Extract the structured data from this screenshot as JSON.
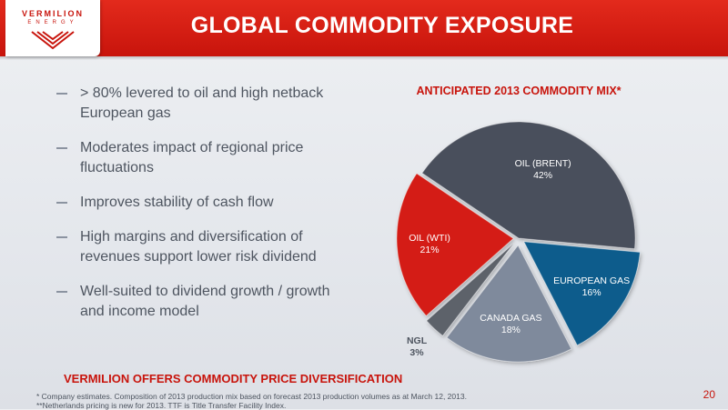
{
  "brand": {
    "logo_line1": "VERMILION",
    "logo_line2": "ENERGY",
    "accent_color": "#c8140c"
  },
  "header": {
    "title": "GLOBAL COMMODITY EXPOSURE"
  },
  "bullets": [
    "> 80% levered to oil and high netback European gas",
    "Moderates impact of regional price fluctuations",
    "Improves stability of cash flow",
    "High margins and diversification of revenues support lower risk dividend",
    "Well-suited to dividend growth / growth and income model"
  ],
  "chart_data": {
    "type": "pie",
    "title": "ANTICIPATED 2013 COMMODITY MIX*",
    "slices": [
      {
        "label": "OIL (BRENT)",
        "value": 42,
        "value_label": "42%",
        "color": "#4a4f5c"
      },
      {
        "label": "EUROPEAN GAS",
        "value": 16,
        "value_label": "16%",
        "color": "#0e5c8c"
      },
      {
        "label": "CANADA GAS",
        "value": 18,
        "value_label": "18%",
        "color": "#7f8a9c"
      },
      {
        "label": "NGL",
        "value": 3,
        "value_label": "3%",
        "color": "#5d626b"
      },
      {
        "label": "OIL (WTI)",
        "value": 21,
        "value_label": "21%",
        "color": "#d41f14"
      }
    ]
  },
  "footer": {
    "headline": "VERMILION OFFERS COMMODITY PRICE DIVERSIFICATION",
    "footnote1": "*  Company estimates. Composition of 2013 production mix based on forecast 2013 production volumes as at March 12, 2013.",
    "footnote2": "**Netherlands pricing is new for 2013. TTF is Title Transfer Facility Index.",
    "page_number": "20"
  }
}
